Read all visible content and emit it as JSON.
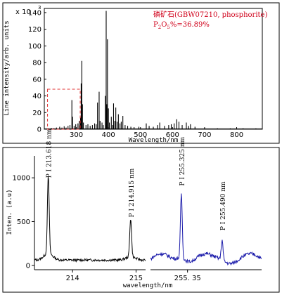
{
  "colors": {
    "spectrum": "#000000",
    "annotation": "#d0021b",
    "highlight_box": "#e03030",
    "series_1": "#000000",
    "series_2": "#1a1aaa"
  },
  "chart_data": [
    {
      "type": "line",
      "sample_label": "磷矿石(GBW07210, phosphorite)",
      "concentration": {
        "prefix": "P",
        "subscript_1": "2",
        "mid": "O",
        "subscript_2": "5",
        "suffix": "%=36.89%"
      },
      "xlabel": "Wavelength/nm",
      "ylabel": "Line intensity/arb. units",
      "y_multiplier": {
        "base": "x 10",
        "exponent": "3"
      },
      "xlim": [
        200,
        880
      ],
      "ylim": [
        0,
        145
      ],
      "x_ticks": [
        300,
        400,
        500,
        600,
        700,
        800
      ],
      "y_ticks": [
        0,
        20,
        40,
        60,
        80,
        100,
        120,
        140
      ],
      "grid": false,
      "highlight_region": {
        "x": [
          210,
          312
        ],
        "y": [
          0,
          48
        ]
      },
      "lines": [
        {
          "x": 214,
          "y": 1
        },
        {
          "x": 222,
          "y": 1.5
        },
        {
          "x": 230,
          "y": 1.2
        },
        {
          "x": 238,
          "y": 2
        },
        {
          "x": 248,
          "y": 3
        },
        {
          "x": 255,
          "y": 2
        },
        {
          "x": 262,
          "y": 3.5
        },
        {
          "x": 268,
          "y": 2
        },
        {
          "x": 274,
          "y": 4
        },
        {
          "x": 280,
          "y": 5
        },
        {
          "x": 286,
          "y": 35
        },
        {
          "x": 288,
          "y": 15
        },
        {
          "x": 293,
          "y": 4
        },
        {
          "x": 298,
          "y": 6
        },
        {
          "x": 305,
          "y": 7
        },
        {
          "x": 309,
          "y": 10
        },
        {
          "x": 313,
          "y": 14
        },
        {
          "x": 315,
          "y": 55
        },
        {
          "x": 317,
          "y": 82
        },
        {
          "x": 319,
          "y": 30
        },
        {
          "x": 322,
          "y": 8
        },
        {
          "x": 330,
          "y": 5
        },
        {
          "x": 336,
          "y": 6
        },
        {
          "x": 343,
          "y": 4
        },
        {
          "x": 350,
          "y": 5
        },
        {
          "x": 357,
          "y": 7
        },
        {
          "x": 362,
          "y": 6
        },
        {
          "x": 366,
          "y": 32
        },
        {
          "x": 371,
          "y": 45
        },
        {
          "x": 374,
          "y": 10
        },
        {
          "x": 380,
          "y": 8
        },
        {
          "x": 384,
          "y": 5
        },
        {
          "x": 390,
          "y": 40
        },
        {
          "x": 393,
          "y": 142
        },
        {
          "x": 395,
          "y": 30
        },
        {
          "x": 397,
          "y": 108
        },
        {
          "x": 400,
          "y": 25
        },
        {
          "x": 403,
          "y": 8
        },
        {
          "x": 409,
          "y": 15
        },
        {
          "x": 413,
          "y": 5
        },
        {
          "x": 416,
          "y": 31
        },
        {
          "x": 420,
          "y": 10
        },
        {
          "x": 423,
          "y": 26
        },
        {
          "x": 427,
          "y": 9
        },
        {
          "x": 431,
          "y": 18
        },
        {
          "x": 436,
          "y": 7
        },
        {
          "x": 440,
          "y": 9
        },
        {
          "x": 445,
          "y": 16
        },
        {
          "x": 452,
          "y": 5
        },
        {
          "x": 460,
          "y": 4
        },
        {
          "x": 470,
          "y": 3
        },
        {
          "x": 480,
          "y": 2.5
        },
        {
          "x": 495,
          "y": 3
        },
        {
          "x": 518,
          "y": 7
        },
        {
          "x": 527,
          "y": 4
        },
        {
          "x": 540,
          "y": 3
        },
        {
          "x": 553,
          "y": 5
        },
        {
          "x": 560,
          "y": 8
        },
        {
          "x": 575,
          "y": 4
        },
        {
          "x": 588,
          "y": 5
        },
        {
          "x": 596,
          "y": 6
        },
        {
          "x": 605,
          "y": 7
        },
        {
          "x": 613,
          "y": 12
        },
        {
          "x": 620,
          "y": 9
        },
        {
          "x": 630,
          "y": 5
        },
        {
          "x": 643,
          "y": 8
        },
        {
          "x": 650,
          "y": 4
        },
        {
          "x": 656,
          "y": 6
        },
        {
          "x": 670,
          "y": 3
        },
        {
          "x": 700,
          "y": 1.5
        },
        {
          "x": 740,
          "y": 1.2
        },
        {
          "x": 780,
          "y": 1
        },
        {
          "x": 820,
          "y": 1.2
        },
        {
          "x": 860,
          "y": 1
        }
      ]
    },
    {
      "type": "line",
      "xlabel": "wavelength/nm",
      "ylabel": "Inten. (a.u)",
      "ylim": [
        -50,
        1250
      ],
      "y_ticks": [
        0,
        500,
        1000
      ],
      "grid": false,
      "panels": [
        {
          "name": "",
          "color": "series_1",
          "xlim": [
            213.4,
            215.15
          ],
          "x_ticks": [
            {
              "value": 214,
              "label": "214"
            },
            {
              "value": 215,
              "label": "215"
            }
          ],
          "peaks": [
            {
              "label": "P I 213.618 nm",
              "x": 213.618,
              "y": 950
            },
            {
              "label": "P I 214.915 nm",
              "x": 214.915,
              "y": 500
            }
          ],
          "background_level": 60
        },
        {
          "name": "",
          "color": "series_2",
          "xlim": [
            255.2,
            255.65
          ],
          "x_ticks": [
            {
              "value": 255.35,
              "label": "255. 35"
            }
          ],
          "peaks": [
            {
              "label": "P I 255.325 nm",
              "x": 255.325,
              "y": 860
            },
            {
              "label": "P I 255.490 nm",
              "x": 255.49,
              "y": 350
            }
          ],
          "background_level": 120
        }
      ]
    }
  ]
}
